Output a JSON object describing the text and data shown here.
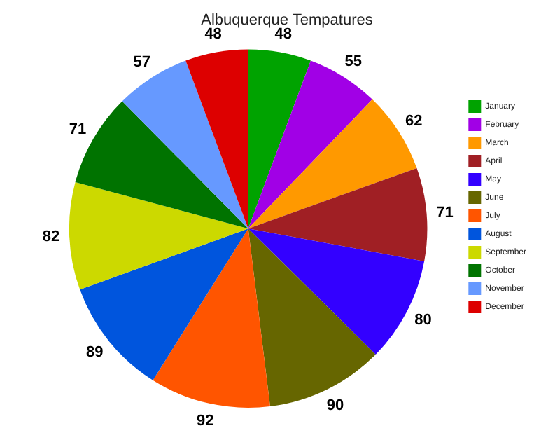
{
  "chart_data": {
    "type": "pie",
    "title": "Albuquerque Tempatures",
    "categories": [
      "January",
      "February",
      "March",
      "April",
      "May",
      "June",
      "July",
      "August",
      "September",
      "October",
      "November",
      "December"
    ],
    "values": [
      48,
      55,
      62,
      71,
      80,
      90,
      92,
      89,
      82,
      71,
      57,
      48
    ],
    "colors": [
      "#00a300",
      "#a100e6",
      "#ff9900",
      "#a01f24",
      "#3300ff",
      "#666600",
      "#ff5500",
      "#0055dd",
      "#ccd900",
      "#007300",
      "#6699ff",
      "#dd0000"
    ],
    "data_labels": true,
    "legend": "right"
  }
}
